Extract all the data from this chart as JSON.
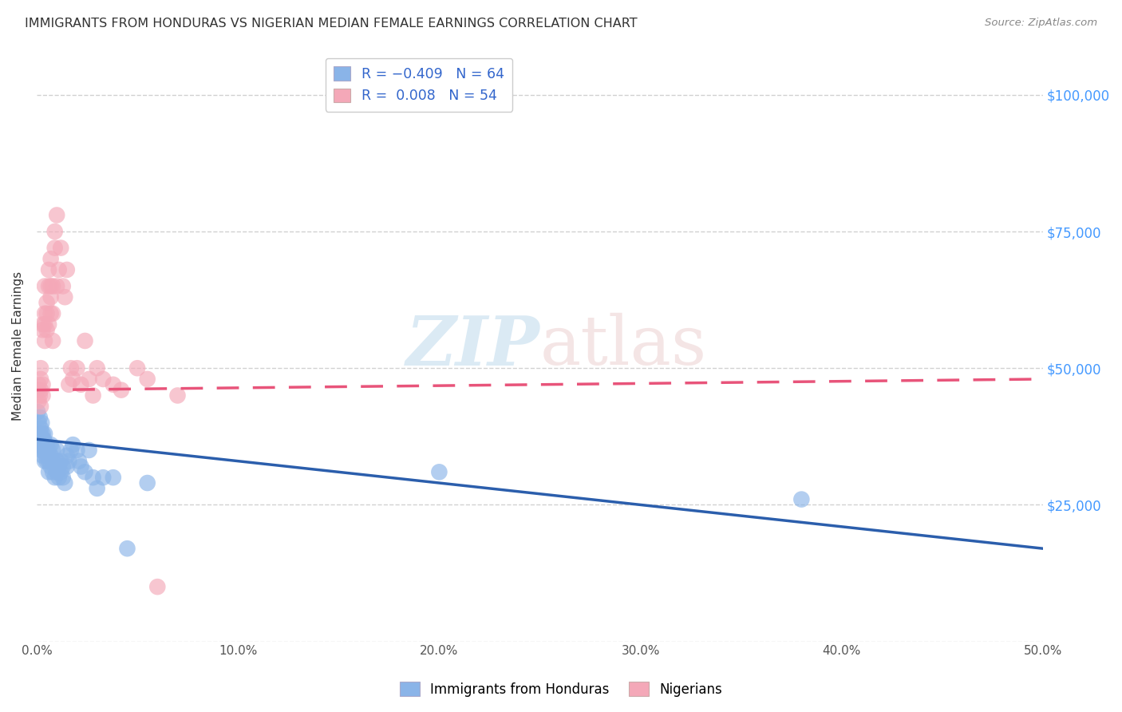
{
  "title": "IMMIGRANTS FROM HONDURAS VS NIGERIAN MEDIAN FEMALE EARNINGS CORRELATION CHART",
  "source_text": "Source: ZipAtlas.com",
  "ylabel": "Median Female Earnings",
  "xlim": [
    0.0,
    0.5
  ],
  "ylim": [
    0,
    108000
  ],
  "yticks": [
    0,
    25000,
    50000,
    75000,
    100000
  ],
  "ytick_labels": [
    "",
    "$25,000",
    "$50,000",
    "$75,000",
    "$100,000"
  ],
  "legend_label_blue": "Immigrants from Honduras",
  "legend_label_pink": "Nigerians",
  "blue_color": "#8AB4E8",
  "pink_color": "#F4A8B8",
  "blue_line_color": "#2B5EAC",
  "pink_line_color": "#E8547A",
  "watermark_zip": "ZIP",
  "watermark_atlas": "atlas",
  "title_color": "#333333",
  "source_color": "#888888",
  "right_tick_color": "#4499FF",
  "grid_color": "#CCCCCC",
  "blue_scatter_x": [
    0.0005,
    0.001,
    0.001,
    0.0015,
    0.0015,
    0.002,
    0.002,
    0.002,
    0.002,
    0.0025,
    0.003,
    0.003,
    0.003,
    0.003,
    0.003,
    0.0035,
    0.004,
    0.004,
    0.004,
    0.004,
    0.005,
    0.005,
    0.005,
    0.005,
    0.006,
    0.006,
    0.006,
    0.006,
    0.007,
    0.007,
    0.007,
    0.008,
    0.008,
    0.008,
    0.009,
    0.009,
    0.01,
    0.01,
    0.01,
    0.011,
    0.011,
    0.012,
    0.012,
    0.013,
    0.013,
    0.014,
    0.015,
    0.015,
    0.016,
    0.017,
    0.018,
    0.02,
    0.021,
    0.022,
    0.024,
    0.026,
    0.028,
    0.03,
    0.033,
    0.038,
    0.045,
    0.055,
    0.2,
    0.38
  ],
  "blue_scatter_y": [
    42000,
    40000,
    38000,
    41000,
    37000,
    39000,
    36000,
    38000,
    35000,
    40000,
    37000,
    35000,
    38000,
    36000,
    34000,
    37000,
    35000,
    36000,
    33000,
    38000,
    35000,
    33000,
    36000,
    34000,
    33000,
    35000,
    31000,
    34000,
    32000,
    34000,
    36000,
    31000,
    33000,
    35000,
    30000,
    32000,
    31000,
    33000,
    35000,
    30000,
    32000,
    31000,
    33000,
    30000,
    32000,
    29000,
    32000,
    34000,
    33000,
    35000,
    36000,
    35000,
    33000,
    32000,
    31000,
    35000,
    30000,
    28000,
    30000,
    30000,
    17000,
    29000,
    31000,
    26000
  ],
  "pink_scatter_x": [
    0.0005,
    0.001,
    0.001,
    0.0015,
    0.002,
    0.002,
    0.002,
    0.002,
    0.003,
    0.003,
    0.003,
    0.003,
    0.004,
    0.004,
    0.004,
    0.004,
    0.005,
    0.005,
    0.005,
    0.006,
    0.006,
    0.006,
    0.007,
    0.007,
    0.007,
    0.007,
    0.008,
    0.008,
    0.008,
    0.009,
    0.009,
    0.01,
    0.01,
    0.011,
    0.012,
    0.013,
    0.014,
    0.015,
    0.016,
    0.017,
    0.018,
    0.02,
    0.022,
    0.024,
    0.026,
    0.028,
    0.03,
    0.033,
    0.038,
    0.042,
    0.05,
    0.055,
    0.06,
    0.07
  ],
  "pink_scatter_y": [
    46000,
    44000,
    47000,
    45000,
    43000,
    46000,
    48000,
    50000,
    45000,
    47000,
    57000,
    58000,
    55000,
    60000,
    58000,
    65000,
    57000,
    62000,
    60000,
    58000,
    65000,
    68000,
    60000,
    63000,
    65000,
    70000,
    55000,
    60000,
    65000,
    72000,
    75000,
    65000,
    78000,
    68000,
    72000,
    65000,
    63000,
    68000,
    47000,
    50000,
    48000,
    50000,
    47000,
    55000,
    48000,
    45000,
    50000,
    48000,
    47000,
    46000,
    50000,
    48000,
    10000,
    45000
  ]
}
